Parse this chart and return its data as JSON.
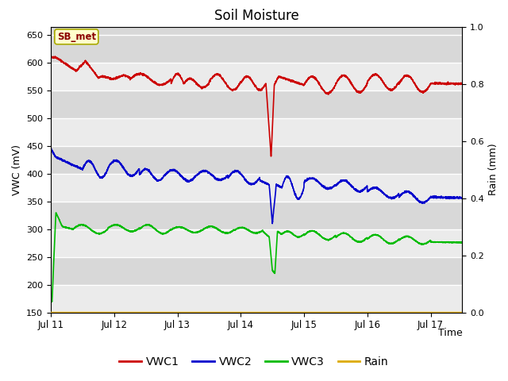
{
  "title": "Soil Moisture",
  "xlabel": "Time",
  "ylabel_left": "VWC (mV)",
  "ylabel_right": "Rain (mm)",
  "ylim_left": [
    150,
    665
  ],
  "ylim_right": [
    0.0,
    1.0
  ],
  "yticks_left": [
    150,
    200,
    250,
    300,
    350,
    400,
    450,
    500,
    550,
    600,
    650
  ],
  "yticks_right": [
    0.0,
    0.2,
    0.4,
    0.6,
    0.8,
    1.0
  ],
  "xlim": [
    0,
    6.5
  ],
  "xtick_labels": [
    "Jul 11",
    "Jul 12",
    "Jul 13",
    "Jul 14",
    "Jul 15",
    "Jul 16",
    "Jul 17"
  ],
  "xtick_positions": [
    0,
    1,
    2,
    3,
    4,
    5,
    6
  ],
  "annotation_text": "SB_met",
  "bg_color_light": "#ebebeb",
  "bg_color_dark": "#d8d8d8",
  "grid_color": "#ffffff",
  "colors": {
    "VWC1": "#cc0000",
    "VWC2": "#0000cc",
    "VWC3": "#00bb00",
    "Rain": "#ddaa00"
  },
  "legend_labels": [
    "VWC1",
    "VWC2",
    "VWC3",
    "Rain"
  ]
}
